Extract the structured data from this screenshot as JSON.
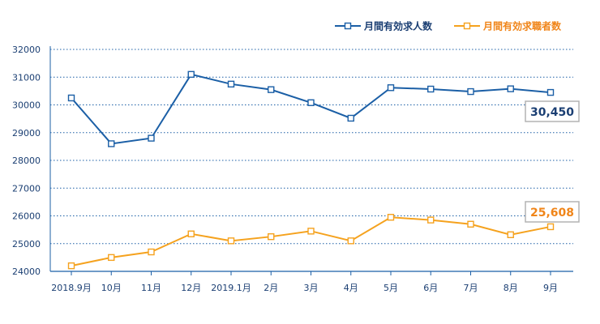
{
  "chart_data": {
    "type": "line",
    "categories": [
      "2018.9月",
      "10月",
      "11月",
      "12月",
      "2019.1月",
      "2月",
      "3月",
      "4月",
      "5月",
      "6月",
      "7月",
      "8月",
      "9月"
    ],
    "ylim": [
      24000,
      32000
    ],
    "yticks": [
      24000,
      25000,
      26000,
      27000,
      28000,
      29000,
      30000,
      31000,
      32000
    ],
    "grid": "horizontal-dotted",
    "legend_position": "top-right",
    "series": [
      {
        "name": "月間有効求人数",
        "color": "#1b5fa6",
        "values": [
          30250,
          28600,
          28800,
          31100,
          30750,
          30550,
          30080,
          29520,
          30620,
          30570,
          30480,
          30580,
          30450
        ],
        "end_label": "30,450",
        "end_label_color": "#1b3f73"
      },
      {
        "name": "月間有効求職者数",
        "color": "#f5a21e",
        "values": [
          24200,
          24500,
          24700,
          25350,
          25100,
          25250,
          25450,
          25100,
          25950,
          25850,
          25700,
          25320,
          25608
        ],
        "end_label": "25,608",
        "end_label_color": "#f08519"
      }
    ]
  }
}
